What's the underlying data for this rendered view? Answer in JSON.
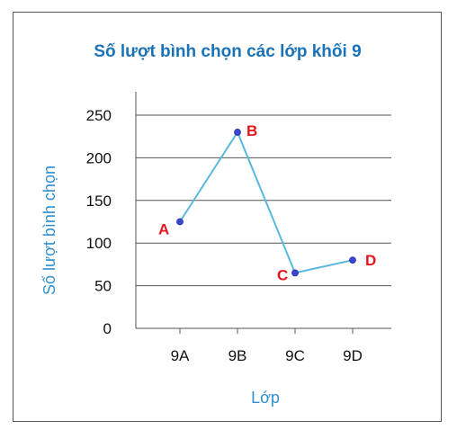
{
  "colors": {
    "title": "#1a73b8",
    "axis_label": "#2f8fcf",
    "line": "#5ab8dd",
    "marker": "#3b46d6",
    "point_label": "#e8141b",
    "grid": "#555555"
  },
  "chart_data": {
    "type": "line",
    "title": "Số lượt bình chọn các lớp khối 9",
    "xlabel": "Lớp",
    "ylabel": "Số lượt bình chọn",
    "categories": [
      "9A",
      "9B",
      "9C",
      "9D"
    ],
    "values": [
      125,
      230,
      65,
      80
    ],
    "point_labels": [
      "A",
      "B",
      "C",
      "D"
    ],
    "ylim": [
      0,
      250
    ],
    "yticks": [
      0,
      50,
      100,
      150,
      200,
      250
    ],
    "grid": true,
    "legend": "none"
  }
}
